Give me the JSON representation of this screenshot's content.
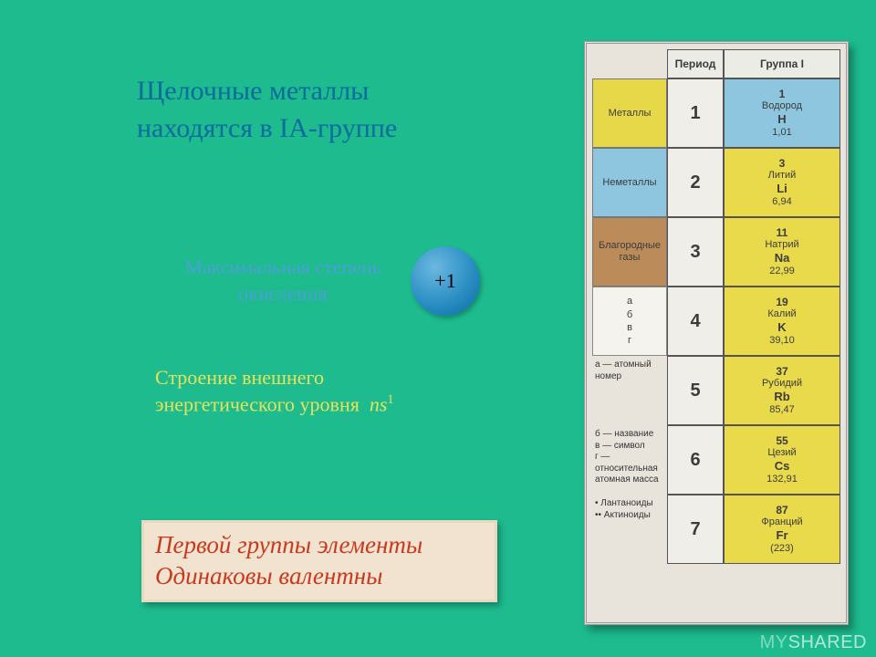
{
  "colors": {
    "page_bg": "#1dbb8e",
    "title_text": "#0a6b9e",
    "oxidation_text": "#4aa0d5",
    "circle_gradient": [
      "#6bb8e0",
      "#2b8fc4",
      "#0a6b9e"
    ],
    "structure_text": "#e7e25a",
    "bottom_box_bg": "#f1e3d0",
    "bottom_text": "#c83a1e",
    "legend_metals_bg": "#e7d84a",
    "legend_nonmetals_bg": "#8ec6df",
    "legend_noblegases_bg": "#bb8c5a",
    "element_alkali_bg": "#e9da4c",
    "element_hydrogen_bg": "#8ec6df"
  },
  "title": {
    "line1": "Щелочные металлы",
    "line2": "находятся в IA-группе"
  },
  "oxidation": {
    "label_line1": "Максимальная степень",
    "label_line2": "окисления",
    "value": "+1"
  },
  "structure": {
    "line1": "Строение внешнего",
    "line2": "энергетического уровня",
    "formula_base": "ns",
    "formula_sup": "1"
  },
  "bottom": {
    "line1": "Первой группы элементы",
    "line2": "Одинаковы валентны"
  },
  "periodic": {
    "header_period": "Период",
    "header_group": "Группа I",
    "legend_metals": "Металлы",
    "legend_nonmetals": "Неметаллы",
    "legend_noblegases": "Благородные газы",
    "abv": {
      "a": "а",
      "b": "б",
      "v": "в",
      "g": "г"
    },
    "legend_lines": [
      "а — атомный номер",
      "б — название",
      "в — символ",
      "г — относительная атомная масса",
      "• Лантаноиды",
      "•• Актиноиды"
    ],
    "rows": [
      {
        "period": "1",
        "num": "1",
        "name": "Водород",
        "sym": "H",
        "mass": "1,01",
        "bg": "#8ec6df"
      },
      {
        "period": "2",
        "num": "3",
        "name": "Литий",
        "sym": "Li",
        "mass": "6,94",
        "bg": "#e9da4c"
      },
      {
        "period": "3",
        "num": "11",
        "name": "Натрий",
        "sym": "Na",
        "mass": "22,99",
        "bg": "#e9da4c"
      },
      {
        "period": "4",
        "num": "19",
        "name": "Калий",
        "sym": "K",
        "mass": "39,10",
        "bg": "#e9da4c"
      },
      {
        "period": "5",
        "num": "37",
        "name": "Рубидий",
        "sym": "Rb",
        "mass": "85,47",
        "bg": "#e9da4c"
      },
      {
        "period": "6",
        "num": "55",
        "name": "Цезий",
        "sym": "Cs",
        "mass": "132,91",
        "bg": "#e9da4c"
      },
      {
        "period": "7",
        "num": "87",
        "name": "Франций",
        "sym": "Fr",
        "mass": "(223)",
        "bg": "#e9da4c"
      }
    ]
  },
  "watermark": {
    "my": "MY",
    "shared": "SHARED"
  }
}
